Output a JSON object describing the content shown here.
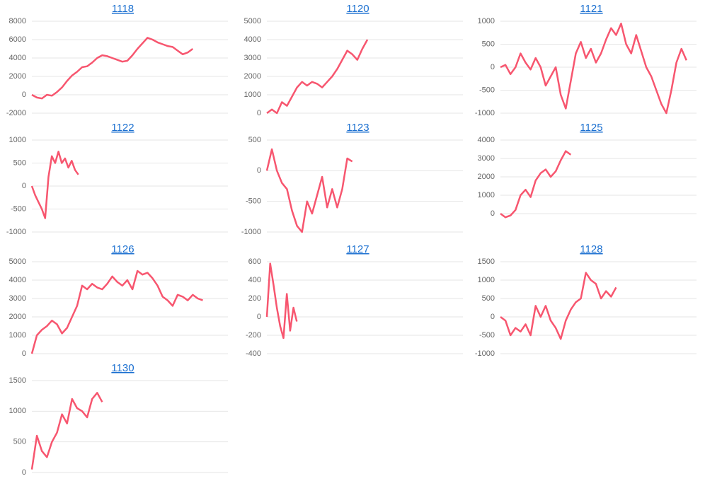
{
  "chart_data": [
    {
      "type": "line",
      "title": "1118",
      "color": "#f7566f",
      "ylim": [
        -2000,
        8000
      ],
      "yticks": [
        -2000,
        0,
        2000,
        4000,
        6000,
        8000
      ],
      "grid": true,
      "values": [
        0,
        -300,
        -400,
        0,
        -100,
        300,
        800,
        1500,
        2100,
        2500,
        3000,
        3100,
        3500,
        4000,
        4300,
        4200,
        4000,
        3800,
        3600,
        3700,
        4300,
        5000,
        5600,
        6200,
        6000,
        5700,
        5500,
        5300,
        5200,
        4800,
        4400,
        4600,
        5000,
        null,
        null,
        null,
        null,
        null,
        null,
        null
      ]
    },
    {
      "type": "line",
      "title": "1120",
      "color": "#f7566f",
      "ylim": [
        0,
        5000
      ],
      "yticks": [
        0,
        1000,
        2000,
        3000,
        4000,
        5000
      ],
      "grid": true,
      "values": [
        0,
        200,
        0,
        600,
        400,
        900,
        1400,
        1700,
        1500,
        1700,
        1600,
        1400,
        1700,
        2000,
        2400,
        2900,
        3400,
        3200,
        2900,
        3500,
        4000,
        null,
        null,
        null,
        null,
        null,
        null,
        null,
        null,
        null,
        null,
        null,
        null,
        null,
        null,
        null,
        null,
        null,
        null,
        null
      ]
    },
    {
      "type": "line",
      "title": "1121",
      "color": "#f7566f",
      "ylim": [
        -1000,
        1000
      ],
      "yticks": [
        -1000,
        -500,
        0,
        500,
        1000
      ],
      "grid": true,
      "values": [
        0,
        50,
        -150,
        0,
        300,
        100,
        -50,
        200,
        0,
        -400,
        -200,
        0,
        -600,
        -900,
        -300,
        300,
        550,
        200,
        400,
        100,
        300,
        600,
        850,
        700,
        950,
        500,
        300,
        700,
        350,
        0,
        -200,
        -500,
        -800,
        -1000,
        -500,
        100,
        400,
        150,
        null,
        null
      ]
    },
    {
      "type": "line",
      "title": "1122",
      "color": "#f7566f",
      "ylim": [
        -1000,
        1000
      ],
      "yticks": [
        -1000,
        -500,
        0,
        500,
        1000
      ],
      "grid": true,
      "values": [
        0,
        -200,
        -350,
        -500,
        -700,
        200,
        650,
        500,
        750,
        500,
        600,
        400,
        550,
        350,
        250,
        null,
        null,
        null,
        null,
        null,
        null,
        null,
        null,
        null,
        null,
        null,
        null,
        null,
        null,
        null,
        null,
        null,
        null,
        null,
        null,
        null,
        null,
        null,
        null,
        null,
        null,
        null,
        null,
        null,
        null,
        null,
        null,
        null,
        null,
        null,
        null,
        null,
        null,
        null,
        null,
        null,
        null,
        null,
        null,
        null
      ]
    },
    {
      "type": "line",
      "title": "1123",
      "color": "#f7566f",
      "ylim": [
        -1000,
        500
      ],
      "yticks": [
        -1000,
        -500,
        0,
        500
      ],
      "grid": true,
      "values": [
        0,
        350,
        0,
        -200,
        -300,
        -650,
        -900,
        -1000,
        -500,
        -700,
        -400,
        -100,
        -600,
        -300,
        -600,
        -300,
        200,
        150,
        null,
        null,
        null,
        null,
        null,
        null,
        null,
        null,
        null,
        null,
        null,
        null,
        null,
        null,
        null,
        null,
        null,
        null,
        null,
        null,
        null,
        null
      ]
    },
    {
      "type": "line",
      "title": "1125",
      "color": "#f7566f",
      "ylim": [
        -1000,
        4000
      ],
      "yticks": [
        0,
        1000,
        2000,
        3000,
        4000
      ],
      "grid": true,
      "values": [
        0,
        -200,
        -100,
        200,
        1000,
        1300,
        900,
        1800,
        2200,
        2400,
        2000,
        2300,
        2900,
        3400,
        3200,
        null,
        null,
        null,
        null,
        null,
        null,
        null,
        null,
        null,
        null,
        null,
        null,
        null,
        null,
        null,
        null,
        null,
        null,
        null,
        null,
        null,
        null,
        null,
        null,
        null
      ]
    },
    {
      "type": "line",
      "title": "1126",
      "color": "#f7566f",
      "ylim": [
        0,
        5000
      ],
      "yticks": [
        0,
        1000,
        2000,
        3000,
        4000,
        5000
      ],
      "grid": true,
      "values": [
        0,
        1000,
        1300,
        1500,
        1800,
        1600,
        1100,
        1400,
        2000,
        2600,
        3700,
        3500,
        3800,
        3600,
        3500,
        3800,
        4200,
        3900,
        3700,
        4000,
        3500,
        4500,
        4300,
        4400,
        4100,
        3700,
        3100,
        2900,
        2600,
        3200,
        3100,
        2900,
        3200,
        3000,
        2900,
        null,
        null,
        null,
        null,
        null
      ]
    },
    {
      "type": "line",
      "title": "1127",
      "color": "#f7566f",
      "ylim": [
        -400,
        600
      ],
      "yticks": [
        -400,
        -200,
        0,
        200,
        400,
        600
      ],
      "grid": true,
      "values": [
        0,
        580,
        350,
        100,
        -100,
        -230,
        250,
        -150,
        100,
        -50,
        null,
        null,
        null,
        null,
        null,
        null,
        null,
        null,
        null,
        null,
        null,
        null,
        null,
        null,
        null,
        null,
        null,
        null,
        null,
        null,
        null,
        null,
        null,
        null,
        null,
        null,
        null,
        null,
        null,
        null,
        null,
        null,
        null,
        null,
        null,
        null,
        null,
        null,
        null,
        null,
        null,
        null,
        null,
        null,
        null,
        null,
        null,
        null,
        null,
        null
      ]
    },
    {
      "type": "line",
      "title": "1128",
      "color": "#f7566f",
      "ylim": [
        -1000,
        1500
      ],
      "yticks": [
        -1000,
        -500,
        0,
        500,
        1000,
        1500
      ],
      "grid": true,
      "values": [
        0,
        -100,
        -500,
        -300,
        -400,
        -200,
        -500,
        300,
        0,
        300,
        -100,
        -300,
        -600,
        -100,
        200,
        400,
        500,
        1200,
        1000,
        900,
        500,
        700,
        550,
        800,
        null,
        null,
        null,
        null,
        null,
        null,
        null,
        null,
        null,
        null,
        null,
        null,
        null,
        null,
        null,
        null
      ]
    },
    {
      "type": "line",
      "title": "1130",
      "color": "#f7566f",
      "ylim": [
        0,
        1500
      ],
      "yticks": [
        0,
        500,
        1000,
        1500
      ],
      "grid": true,
      "values": [
        50,
        600,
        350,
        250,
        500,
        650,
        950,
        800,
        1200,
        1050,
        1000,
        900,
        1200,
        1300,
        1150,
        null,
        null,
        null,
        null,
        null,
        null,
        null,
        null,
        null,
        null,
        null,
        null,
        null,
        null,
        null,
        null,
        null,
        null,
        null,
        null,
        null,
        null,
        null,
        null,
        null
      ]
    }
  ]
}
